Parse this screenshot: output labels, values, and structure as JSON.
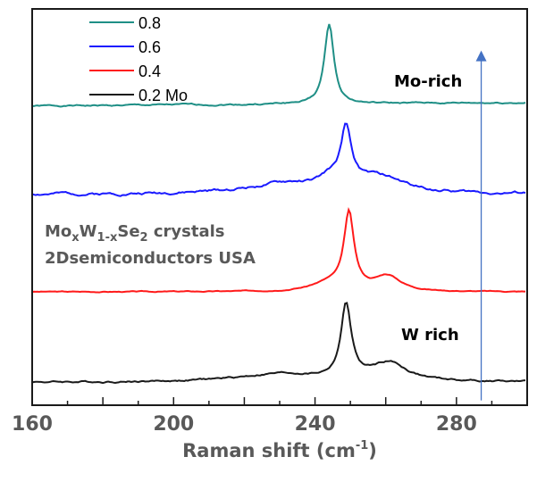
{
  "chart_data": {
    "type": "line",
    "title": "",
    "xlabel": "Raman shift (cm",
    "xlabel_sup": "-1",
    "xlabel_close": ")",
    "ylabel": "",
    "xlim": [
      160,
      300
    ],
    "ylim": [
      0,
      100
    ],
    "x_ticks_major": [
      160,
      200,
      240,
      280
    ],
    "x_tick_labels": [
      "160",
      "200",
      "240",
      "280"
    ],
    "x_ticks_minor": [
      170,
      180,
      190,
      210,
      220,
      230,
      250,
      260,
      270,
      290
    ],
    "grid": false,
    "legend": {
      "placement": "top-left",
      "entries": [
        {
          "label": "0.8",
          "color": "#1f8f86"
        },
        {
          "label": "0.6",
          "color": "#1a1aff"
        },
        {
          "label": "0.4",
          "color": "#ff1a1a"
        },
        {
          "label": "0.2 Mo",
          "color": "#1a1a1a"
        }
      ]
    },
    "series": [
      {
        "name": "0.8",
        "color": "#1f8f86",
        "baseline": 75.5,
        "peaks": [
          {
            "center": 244.0,
            "height": 20.2,
            "width": 1.6
          }
        ],
        "slope": 0.006,
        "noise_seed": 1,
        "noise_amp": 0.25
      },
      {
        "name": "0.6",
        "color": "#1a1aff",
        "baseline": 53.2,
        "peaks": [
          {
            "center": 248.8,
            "height": 14.5,
            "width": 1.8
          },
          {
            "center": 244.0,
            "height": 2.0,
            "width": 3.0
          },
          {
            "center": 258.0,
            "height": 4.0,
            "width": 9.0
          },
          {
            "center": 232.0,
            "height": 2.5,
            "width": 14.0
          }
        ],
        "slope": 0.0,
        "noise_seed": 2,
        "noise_amp": 0.45
      },
      {
        "name": "0.4",
        "color": "#ff1a1a",
        "baseline": 28.6,
        "peaks": [
          {
            "center": 249.6,
            "height": 19.0,
            "width": 1.7
          },
          {
            "center": 260.5,
            "height": 3.8,
            "width": 4.5
          },
          {
            "center": 244.0,
            "height": 2.0,
            "width": 6.0
          }
        ],
        "slope": 0.0,
        "noise_seed": 3,
        "noise_amp": 0.15
      },
      {
        "name": "0.2 Mo",
        "color": "#1a1a1a",
        "baseline": 5.8,
        "peaks": [
          {
            "center": 248.8,
            "height": 18.6,
            "width": 1.8
          },
          {
            "center": 261.0,
            "height": 4.6,
            "width": 6.0
          },
          {
            "center": 230.0,
            "height": 2.0,
            "width": 14.0
          }
        ],
        "slope": 0.0,
        "noise_seed": 4,
        "noise_amp": 0.3
      }
    ],
    "annotations": {
      "mo_rich": "Mo-rich",
      "w_rich": "W rich",
      "compound_mo": "Mo",
      "compound_x": "x",
      "compound_w": "W",
      "compound_1x": "1-x",
      "compound_se": "Se",
      "compound_2": "2",
      "compound_rest": " crystals",
      "vendor": "2Dsemiconductors USA"
    },
    "arrow": {
      "x": 287,
      "y_from": 1.2,
      "y_to": 89.5,
      "color": "#4472c4"
    }
  }
}
